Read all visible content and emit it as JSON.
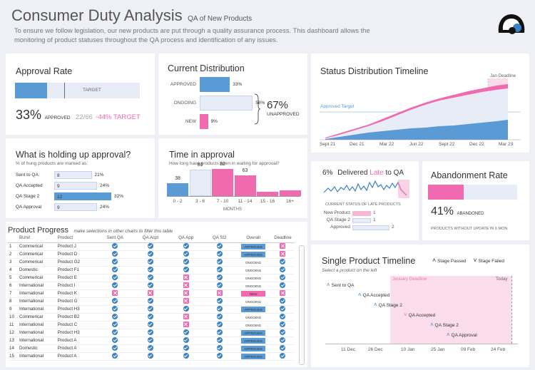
{
  "header": {
    "title": "Consumer Duty Analysis",
    "subtitle": "QA of New Products",
    "description": "To ensure we follow legislation, our new products are put through a quality assurance process. This dashboard allows the monitoring of product statuses throughout the QA process and identification of any issues."
  },
  "approval_rate": {
    "title": "Approval Rate",
    "target_label": "TARGET",
    "pct": "33%",
    "approved_label": "APPROVED",
    "fraction": "22/66",
    "target_diff": "-44% TARGET",
    "bar_fill": 0.33,
    "target_pos": 0.77
  },
  "current_distribution": {
    "title": "Current Distribution",
    "rows": [
      {
        "label": "APPROVED",
        "pct": "33%",
        "value": 0.33
      },
      {
        "label": "ONGOING",
        "pct": "58%",
        "value": 0.58
      },
      {
        "label": "NEW",
        "pct": "9%",
        "value": 0.09
      }
    ],
    "summary_pct": "67%",
    "summary_label": "UNAPPROVED"
  },
  "status_timeline": {
    "title": "Status Distribution Timeline",
    "deadline_label": "Jan Deadline",
    "target_label": "Approved Target",
    "x_labels": [
      "Sept 21",
      "Dec 21",
      "Mar 22",
      "Jun 22",
      "Sept 22",
      "Dec 22",
      "Mar 23"
    ]
  },
  "holding_up": {
    "title": "What is holding up approval?",
    "subtitle": "% of hung products are marked as:",
    "rows": [
      {
        "label": "Sent to QA",
        "count": "8",
        "pct": "21%",
        "value": 0.21
      },
      {
        "label": "QA Accepted",
        "count": "9",
        "pct": "24%",
        "value": 0.24
      },
      {
        "label": "QA Stage 2",
        "count": "12",
        "pct": "32%",
        "value": 0.32
      },
      {
        "label": "QA Approval",
        "count": "9",
        "pct": "24%",
        "value": 0.24
      }
    ]
  },
  "time_in_approval": {
    "title": "Time in approval",
    "subtitle": "How long have products been in waiting for approval?",
    "xlabel": "MONTHS",
    "bins": [
      {
        "label": "0 - 2",
        "value": 38,
        "text": "38"
      },
      {
        "label": "3 - 6",
        "value": 80,
        "text": "80"
      },
      {
        "label": "7 - 10",
        "value": 82,
        "text": "82"
      },
      {
        "label": "11 - 14",
        "value": 63,
        "text": "63"
      },
      {
        "label": "15 - 16",
        "value": 12,
        "text": ""
      },
      {
        "label": "16+",
        "value": 18,
        "text": ""
      }
    ]
  },
  "late": {
    "pct": "6%",
    "title_pre": "Delivered ",
    "title_late": "Late",
    "title_post": " to QA",
    "caption": "CURRENT STATUS OF LATE PRODUCTS",
    "rows": [
      {
        "label": "New Product",
        "count": "1",
        "value": 0.5
      },
      {
        "label": "QA Stage 2",
        "count": "1",
        "value": 0.5
      },
      {
        "label": "Approved",
        "count": "2",
        "value": 1.0
      }
    ]
  },
  "abandonment": {
    "title": "Abandonment Rate",
    "pct": "41%",
    "label": "ABANDONED",
    "caption": "PRODUCTS WITHOUT UPDATE IN 6 MON",
    "value": 0.41
  },
  "product_progress": {
    "title": "Product Progress",
    "hint": "make selections in other charts to filter this table",
    "columns": [
      "",
      "BUnit",
      "Product",
      "Sent QA",
      "QA Acpt",
      "QA App",
      "QA St2",
      "Overall",
      "Deadline"
    ],
    "rows": [
      {
        "n": "1",
        "unit": "Commerical",
        "product": "Product J",
        "s": [
          "c",
          "c",
          "c",
          "c"
        ],
        "overall": "APPROVED",
        "deadline": "x"
      },
      {
        "n": "2",
        "unit": "Commerical",
        "product": "Product D",
        "s": [
          "c",
          "c",
          "c",
          "c"
        ],
        "overall": "APPROVED",
        "deadline": "x"
      },
      {
        "n": "3",
        "unit": "Commerical",
        "product": "Product G2",
        "s": [
          "c",
          "c",
          "c",
          "c"
        ],
        "overall": "ONGOING",
        "deadline": "c"
      },
      {
        "n": "4",
        "unit": "Domestic",
        "product": "Product F1",
        "s": [
          "c",
          "c",
          "c",
          "c"
        ],
        "overall": "ONGOING",
        "deadline": "c"
      },
      {
        "n": "5",
        "unit": "Commerical",
        "product": "Product E",
        "s": [
          "c",
          "c",
          "x",
          "c"
        ],
        "overall": "ONGOING",
        "deadline": "c"
      },
      {
        "n": "6",
        "unit": "International",
        "product": "Product I",
        "s": [
          "c",
          "c",
          "x",
          "c"
        ],
        "overall": "ONGOING",
        "deadline": "c"
      },
      {
        "n": "7",
        "unit": "International",
        "product": "Product K",
        "s": [
          "x",
          "x",
          "x",
          "x"
        ],
        "overall": "NEW",
        "deadline": "x"
      },
      {
        "n": "8",
        "unit": "International",
        "product": "Product G",
        "s": [
          "c",
          "c",
          "x",
          "c"
        ],
        "overall": "ONGOING",
        "deadline": "c"
      },
      {
        "n": "9",
        "unit": "International",
        "product": "Product H3",
        "s": [
          "c",
          "c",
          "c",
          "c"
        ],
        "overall": "APPROVED",
        "deadline": "c"
      },
      {
        "n": "10",
        "unit": "Commerical",
        "product": "Product B2",
        "s": [
          "c",
          "c",
          "x",
          "c"
        ],
        "overall": "ONGOING",
        "deadline": "c"
      },
      {
        "n": "11",
        "unit": "International",
        "product": "Product C",
        "s": [
          "c",
          "c",
          "x",
          "c"
        ],
        "overall": "ONGOING",
        "deadline": "c"
      },
      {
        "n": "12",
        "unit": "International",
        "product": "Product H3",
        "s": [
          "c",
          "c",
          "c",
          "c"
        ],
        "overall": "APPROVED",
        "deadline": "c"
      },
      {
        "n": "13",
        "unit": "International",
        "product": "Product A",
        "s": [
          "c",
          "c",
          "c",
          "c"
        ],
        "overall": "APPROVED",
        "deadline": "c"
      },
      {
        "n": "14",
        "unit": "Domestic",
        "product": "Product A",
        "s": [
          "c",
          "c",
          "c",
          "c"
        ],
        "overall": "APPROVED",
        "deadline": "c"
      },
      {
        "n": "15",
        "unit": "International",
        "product": "Product A",
        "s": [
          "c",
          "c",
          "c",
          "c"
        ],
        "overall": "APPROVED",
        "deadline": "c"
      }
    ]
  },
  "single_timeline": {
    "title": "Single Product Timeline",
    "hint": "Select a product on the left",
    "legend_passed": "Stage Passed",
    "legend_failed": "Stage Failed",
    "deadline_label": "January Deadline",
    "today_label": "Today",
    "events": [
      {
        "label": "Sent to QA",
        "status": "passed"
      },
      {
        "label": "QA Accepted",
        "status": "passed"
      },
      {
        "label": "QA Stage 2",
        "status": "passed"
      },
      {
        "label": "QA Accepted",
        "status": "failed"
      },
      {
        "label": "QA Stage 2",
        "status": "passed"
      },
      {
        "label": "QA Approval",
        "status": "passed"
      }
    ],
    "x_labels": [
      "11 Dec",
      "26 Dec",
      "10 Jan",
      "25 Jan",
      "09 Feb",
      "24 Feb"
    ]
  },
  "colors": {
    "primary": "#5b9bd5",
    "accent": "#f06ab0",
    "pale": "#e8ecf6"
  }
}
